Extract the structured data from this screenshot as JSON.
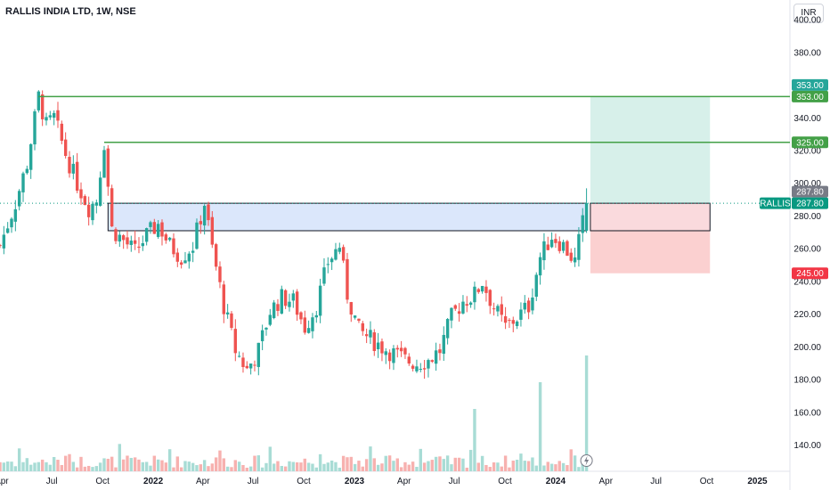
{
  "header": {
    "title": "RALLIS INDIA LTD, 1W, NSE",
    "currency": "INR"
  },
  "colors": {
    "up": "#26a69a",
    "down": "#ef5350",
    "up_volume": "#a8dcd5",
    "down_volume": "#f7b1af",
    "level_line": "#43a047",
    "target_zone": "#d7f0ea",
    "stop_zone": "#fbd0d0",
    "entry_zone": "#fadadd",
    "range_box": "#dbe7fb",
    "price_tag": "#089981"
  },
  "chart_data": {
    "type": "candlestick",
    "symbol": "RALLIS",
    "timeframe": "1W",
    "last_price": 287.8,
    "y_axis": {
      "ticks": [
        "400.00",
        "380.00",
        "360.00",
        "340.00",
        "320.00",
        "300.00",
        "280.00",
        "260.00",
        "240.00",
        "220.00",
        "200.00",
        "180.00",
        "160.00",
        "140.00"
      ],
      "range": [
        124,
        412
      ]
    },
    "x_axis": {
      "range": [
        "2021-03-29",
        "2025-03-01"
      ],
      "ticks": [
        {
          "date": "2021-04-01",
          "label": "Apr",
          "bold": false
        },
        {
          "date": "2021-07-01",
          "label": "Jul",
          "bold": false
        },
        {
          "date": "2021-10-01",
          "label": "Oct",
          "bold": false
        },
        {
          "date": "2022-01-01",
          "label": "2022",
          "bold": true
        },
        {
          "date": "2022-04-01",
          "label": "Apr",
          "bold": false
        },
        {
          "date": "2022-07-01",
          "label": "Jul",
          "bold": false
        },
        {
          "date": "2022-10-01",
          "label": "Oct",
          "bold": false
        },
        {
          "date": "2023-01-01",
          "label": "2023",
          "bold": true
        },
        {
          "date": "2023-04-01",
          "label": "Apr",
          "bold": false
        },
        {
          "date": "2023-07-01",
          "label": "Jul",
          "bold": false
        },
        {
          "date": "2023-10-01",
          "label": "Oct",
          "bold": false
        },
        {
          "date": "2024-01-01",
          "label": "2024",
          "bold": true
        },
        {
          "date": "2024-04-01",
          "label": "Apr",
          "bold": false
        },
        {
          "date": "2024-07-01",
          "label": "Jul",
          "bold": false
        },
        {
          "date": "2024-10-01",
          "label": "Oct",
          "bold": false
        },
        {
          "date": "2025-01-01",
          "label": "2025",
          "bold": true
        }
      ]
    },
    "price_path": [
      [
        "2021-03-29",
        262
      ],
      [
        "2021-04-26",
        288
      ],
      [
        "2021-05-17",
        312
      ],
      [
        "2021-06-07",
        353
      ],
      [
        "2021-06-21",
        335
      ],
      [
        "2021-07-05",
        340
      ],
      [
        "2021-07-26",
        318
      ],
      [
        "2021-08-16",
        300
      ],
      [
        "2021-09-06",
        285
      ],
      [
        "2021-09-20",
        290
      ],
      [
        "2021-10-04",
        325
      ],
      [
        "2021-10-18",
        272
      ],
      [
        "2021-11-08",
        265
      ],
      [
        "2021-11-29",
        258
      ],
      [
        "2021-12-20",
        268
      ],
      [
        "2022-01-10",
        275
      ],
      [
        "2022-01-31",
        262
      ],
      [
        "2022-02-21",
        255
      ],
      [
        "2022-03-14",
        262
      ],
      [
        "2022-04-04",
        288
      ],
      [
        "2022-04-18",
        260
      ],
      [
        "2022-05-09",
        225
      ],
      [
        "2022-05-30",
        198
      ],
      [
        "2022-06-20",
        186
      ],
      [
        "2022-07-11",
        198
      ],
      [
        "2022-08-01",
        222
      ],
      [
        "2022-08-22",
        230
      ],
      [
        "2022-09-12",
        228
      ],
      [
        "2022-10-03",
        212
      ],
      [
        "2022-10-24",
        225
      ],
      [
        "2022-11-14",
        252
      ],
      [
        "2022-12-05",
        262
      ],
      [
        "2022-12-19",
        232
      ],
      [
        "2023-01-09",
        210
      ],
      [
        "2023-01-30",
        205
      ],
      [
        "2023-02-20",
        200
      ],
      [
        "2023-03-13",
        196
      ],
      [
        "2023-04-03",
        192
      ],
      [
        "2023-04-24",
        190
      ],
      [
        "2023-05-15",
        192
      ],
      [
        "2023-06-05",
        198
      ],
      [
        "2023-06-26",
        218
      ],
      [
        "2023-07-17",
        228
      ],
      [
        "2023-08-07",
        232
      ],
      [
        "2023-08-21",
        240
      ],
      [
        "2023-09-11",
        224
      ],
      [
        "2023-10-02",
        212
      ],
      [
        "2023-10-23",
        218
      ],
      [
        "2023-11-13",
        225
      ],
      [
        "2023-12-04",
        255
      ],
      [
        "2023-12-25",
        268
      ],
      [
        "2024-01-15",
        262
      ],
      [
        "2024-02-05",
        252
      ],
      [
        "2024-02-26",
        287.8
      ]
    ],
    "levels": [
      {
        "name": "resistance-upper",
        "value": 353.0,
        "label": "353.00",
        "start": "2021-06-07"
      },
      {
        "name": "resistance-lower",
        "value": 325.0,
        "label": "325.00",
        "start": "2021-10-04"
      }
    ],
    "range_box": {
      "start": "2021-10-11",
      "end": "2024-02-26",
      "top": 287.8,
      "bottom": 271
    },
    "position": {
      "start": "2024-03-04",
      "end": "2024-10-07",
      "entry": 287.8,
      "entry_bottom": 271,
      "target": 353,
      "stop": 245
    },
    "price_tags": [
      {
        "value": 353.0,
        "label": "353.00",
        "style": "outline-green"
      },
      {
        "value": 353.0,
        "label": "353.00",
        "style": "solid-green"
      },
      {
        "value": 325.0,
        "label": "325.00",
        "style": "solid-green"
      },
      {
        "value": 287.8,
        "label": "287.80",
        "style": "gray"
      },
      {
        "value": 287.8,
        "label": "287.80",
        "style": "solid-teal",
        "symbol": "RALLIS"
      },
      {
        "value": 245.0,
        "label": "245.00",
        "style": "solid-red"
      }
    ],
    "volume": {
      "peaks": [
        "2023-08-07",
        "2023-12-04",
        "2024-02-26"
      ]
    }
  }
}
